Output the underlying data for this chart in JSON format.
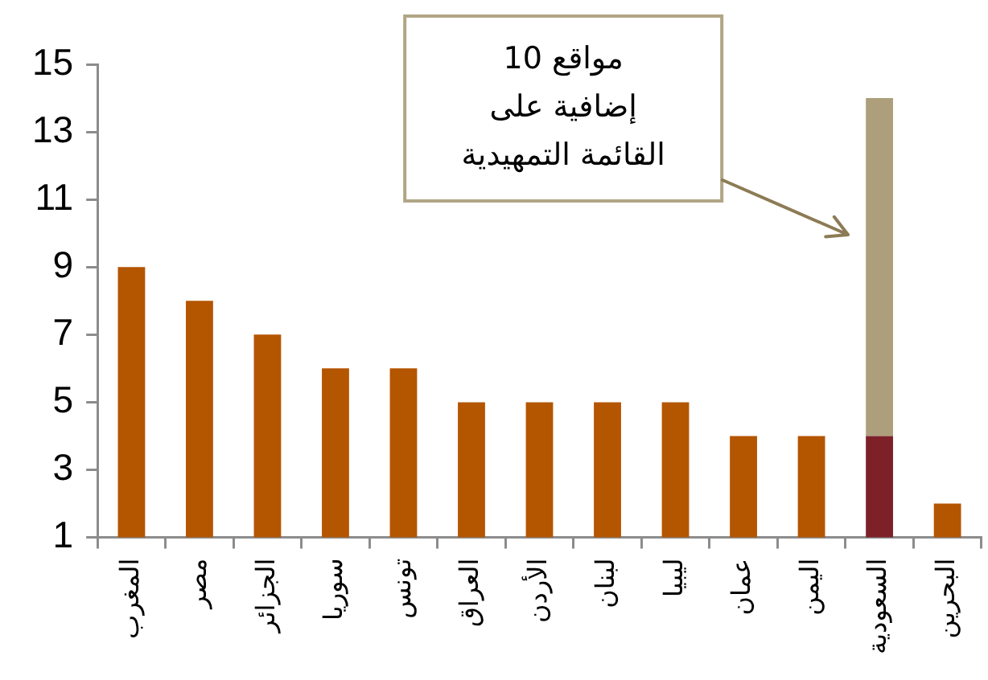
{
  "chart_data": {
    "type": "bar",
    "categories": [
      "المغرب",
      "مصر",
      "الجزائر",
      "سوريا",
      "تونس",
      "العراق",
      "الأردن",
      "لبنان",
      "ليبيا",
      "عمان",
      "اليمن",
      "السعودية",
      "البحرين"
    ],
    "series": [
      {
        "values": [
          9,
          8,
          7,
          6,
          6,
          5,
          5,
          5,
          5,
          4,
          4,
          4,
          2
        ],
        "colors": [
          "#b45500",
          "#b45500",
          "#b45500",
          "#b45500",
          "#b45500",
          "#b45500",
          "#b45500",
          "#b45500",
          "#b45500",
          "#b45500",
          "#b45500",
          "#7d2028",
          "#b45500"
        ]
      },
      {
        "values": [
          null,
          null,
          null,
          null,
          null,
          null,
          null,
          null,
          null,
          null,
          null,
          10,
          null
        ],
        "color": "#ad9f7b"
      }
    ],
    "stacked": true,
    "ylim": [
      1,
      15
    ],
    "yticks": [
      1,
      3,
      5,
      7,
      9,
      11,
      13,
      15
    ],
    "annotations": [
      "10 مواقع\nإضافية على\nالقائمة التمهيدية"
    ]
  }
}
